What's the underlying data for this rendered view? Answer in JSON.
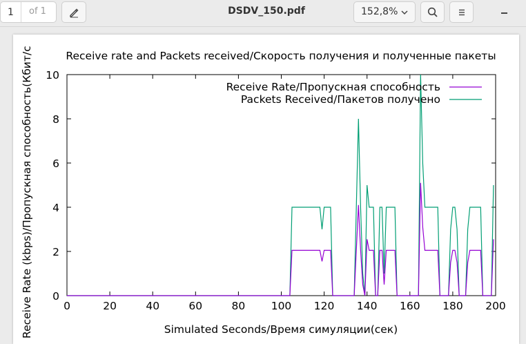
{
  "toolbar": {
    "page_current": "1",
    "page_total": "of 1",
    "doc_title": "DSDV_150.pdf",
    "zoom": "152,8%",
    "icons": [
      "annotate-pen-icon",
      "chevron-down-icon",
      "search-icon",
      "hamburger-menu-icon",
      "minimize-icon"
    ]
  },
  "chart_data": {
    "type": "line",
    "title": "Receive rate and Packets received/Скорость получения и полученные пакеты",
    "xlabel": "Simulated Seconds/Время симуляции(сек)",
    "ylabel": "Receive Rate (kbps)/Пропускная способность(Кбит/с",
    "xlim": [
      0,
      200
    ],
    "ylim": [
      0,
      10
    ],
    "xticks": [
      "0",
      "20",
      "40",
      "60",
      "80",
      "100",
      "120",
      "140",
      "160",
      "180",
      "200"
    ],
    "yticks": [
      "0",
      "2",
      "4",
      "6",
      "8",
      "10"
    ],
    "legend_position": "top-right",
    "grid": false,
    "series": [
      {
        "name": "Receive Rate/Пропускная способность",
        "color": "#9400d3",
        "x": [
          0,
          104,
          105,
          118,
          119,
          120,
          123,
          124,
          134,
          135,
          136,
          137,
          138,
          139,
          140,
          141,
          142,
          143,
          144,
          145,
          146,
          147,
          148,
          149,
          150,
          151,
          152,
          153,
          154,
          155,
          164,
          165,
          166,
          167,
          173,
          174,
          178,
          179,
          180,
          181,
          182,
          183,
          184,
          185,
          186,
          187,
          188,
          189,
          190,
          191,
          192,
          193,
          194,
          195,
          196,
          197,
          198,
          199
        ],
        "y": [
          0,
          0,
          2.05,
          2.05,
          1.55,
          2.05,
          2.05,
          0,
          0,
          2.05,
          4.1,
          2.05,
          0.5,
          0,
          2.55,
          2.05,
          2.05,
          2.05,
          0,
          0,
          2.05,
          2.05,
          0.5,
          2.05,
          2.05,
          2.05,
          2.05,
          2.05,
          0,
          0,
          0,
          5.1,
          3.1,
          2.05,
          2.05,
          0,
          0,
          1.5,
          2.05,
          2.05,
          1.5,
          0,
          0,
          0,
          0,
          1.5,
          2.05,
          2.05,
          2.05,
          2.05,
          2.05,
          2.05,
          0,
          0,
          0,
          0,
          0,
          2.55
        ]
      },
      {
        "name": "Packets Received/Пакетов получено",
        "color": "#009e73",
        "x": [
          0,
          104,
          105,
          118,
          119,
          120,
          123,
          124,
          134,
          135,
          136,
          137,
          138,
          139,
          140,
          141,
          142,
          143,
          144,
          145,
          146,
          147,
          148,
          149,
          150,
          151,
          152,
          153,
          154,
          155,
          164,
          165,
          166,
          167,
          173,
          174,
          178,
          179,
          180,
          181,
          182,
          183,
          184,
          185,
          186,
          187,
          188,
          189,
          190,
          191,
          192,
          193,
          194,
          195,
          196,
          197,
          198,
          199
        ],
        "y": [
          0,
          0,
          4,
          4,
          3,
          4,
          4,
          0,
          0,
          4,
          8,
          4,
          1,
          0,
          5,
          4,
          4,
          4,
          0,
          0,
          4,
          4,
          1,
          4,
          4,
          4,
          4,
          4,
          0,
          0,
          0,
          10,
          6,
          4,
          4,
          0,
          0,
          3,
          4,
          4,
          3,
          0,
          0,
          0,
          0,
          3,
          4,
          4,
          4,
          4,
          4,
          4,
          0,
          0,
          0,
          0,
          0,
          5
        ]
      }
    ]
  }
}
